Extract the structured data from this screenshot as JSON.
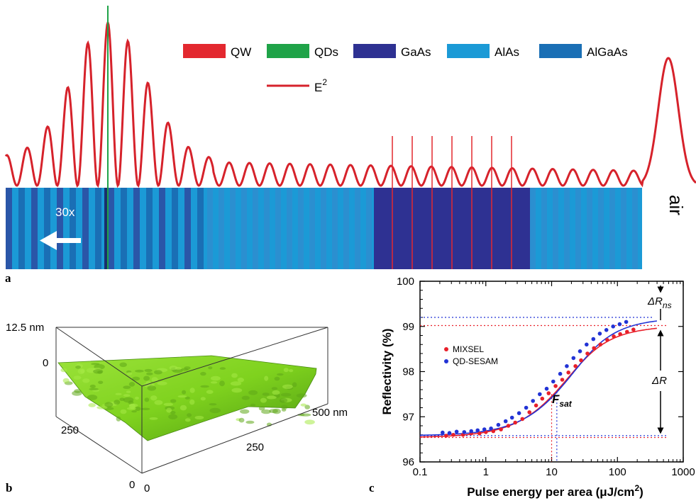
{
  "panel_labels": {
    "a": "a",
    "b": "b",
    "c": "c"
  },
  "colors": {
    "qw": "#e3282f",
    "qds": "#1fa348",
    "gaas": "#2e3192",
    "alas": "#1b9ad6",
    "algaas": "#1a6fb5",
    "e2_line": "#d6222b",
    "mixsel": "#e8202a",
    "qd_sesam": "#2233d5",
    "surface": "#7fd21e"
  },
  "panel_a": {
    "legend": [
      {
        "label": "QW",
        "color": "#e3282f"
      },
      {
        "label": "QDs",
        "color": "#1fa348"
      },
      {
        "label": "GaAs",
        "color": "#2e3192"
      },
      {
        "label": "AlAs",
        "color": "#1b9ad6"
      },
      {
        "label": "AlGaAs",
        "color": "#1a6fb5"
      }
    ],
    "e2_label": "E",
    "e2_sup": "2",
    "repeat_label": "30x",
    "air_label": "air"
  },
  "panel_b": {
    "z_max_label": "12.5 nm",
    "z_zero_label": "0",
    "y_tick_250": "250",
    "y_tick_0": "0",
    "x_tick_0": "0",
    "x_tick_250": "250",
    "x_tick_500": "500 nm"
  },
  "chart_data": {
    "type": "scatter",
    "title": "",
    "xlabel": "Pulse energy per area (μJ/cm",
    "xlabel_sup": "2",
    "xlabel_tail": ")",
    "ylabel": "Reflectivity (%)",
    "x_scale": "log",
    "xlim": [
      0.1,
      1000
    ],
    "ylim": [
      96,
      100
    ],
    "x_ticks": [
      {
        "v": 0.1,
        "label": "0.1"
      },
      {
        "v": 1,
        "label": "1"
      },
      {
        "v": 10,
        "label": "10"
      },
      {
        "v": 100,
        "label": "100"
      },
      {
        "v": 1000,
        "label": "1000"
      }
    ],
    "y_ticks": [
      {
        "v": 96,
        "label": "96"
      },
      {
        "v": 97,
        "label": "97"
      },
      {
        "v": 98,
        "label": "98"
      },
      {
        "v": 99,
        "label": "99"
      },
      {
        "v": 100,
        "label": "100"
      }
    ],
    "series": [
      {
        "name": "MIXSEL",
        "color": "#e8202a",
        "x": [
          0.25,
          0.32,
          0.45,
          0.6,
          0.8,
          1.0,
          1.3,
          1.7,
          2.2,
          2.8,
          3.6,
          4.6,
          5.8,
          7.2,
          9.0,
          11.5,
          14.5,
          18,
          23,
          28,
          35,
          44,
          55,
          70,
          88,
          110,
          140,
          175
        ],
        "y": [
          96.58,
          96.6,
          96.6,
          96.63,
          96.63,
          96.66,
          96.68,
          96.72,
          96.8,
          96.87,
          96.95,
          97.1,
          97.25,
          97.4,
          97.52,
          97.68,
          97.82,
          97.98,
          98.12,
          98.25,
          98.4,
          98.52,
          98.6,
          98.7,
          98.78,
          98.83,
          98.88,
          98.93
        ]
      },
      {
        "name": "QD-SESAM",
        "color": "#2233d5",
        "x": [
          0.22,
          0.28,
          0.36,
          0.47,
          0.6,
          0.75,
          0.95,
          1.2,
          1.55,
          2.0,
          2.5,
          3.2,
          4.1,
          5.2,
          6.6,
          8.4,
          10.6,
          13.5,
          17,
          21.5,
          27,
          34,
          43,
          54,
          68,
          86,
          108,
          136
        ],
        "y": [
          96.65,
          96.64,
          96.67,
          96.66,
          96.68,
          96.7,
          96.72,
          96.74,
          96.82,
          96.9,
          96.98,
          97.08,
          97.2,
          97.35,
          97.5,
          97.62,
          97.78,
          97.95,
          98.12,
          98.3,
          98.45,
          98.6,
          98.72,
          98.84,
          98.92,
          99.0,
          99.05,
          99.1
        ]
      }
    ],
    "fit_curves": [
      {
        "series": "MIXSEL",
        "color": "#e8202a",
        "r_ns_limit": 99.02,
        "delta_r": 2.48,
        "f_sat": 10
      },
      {
        "series": "QD-SESAM",
        "color": "#2233d5",
        "r_ns_limit": 99.2,
        "delta_r": 2.62,
        "f_sat": 12
      }
    ],
    "annotations": {
      "delta_rns": "ΔR",
      "delta_rns_sub": "ns",
      "delta_r": "ΔR",
      "f_sat": "F",
      "f_sat_sub": "sat"
    },
    "legend_placement": "upper-left"
  }
}
